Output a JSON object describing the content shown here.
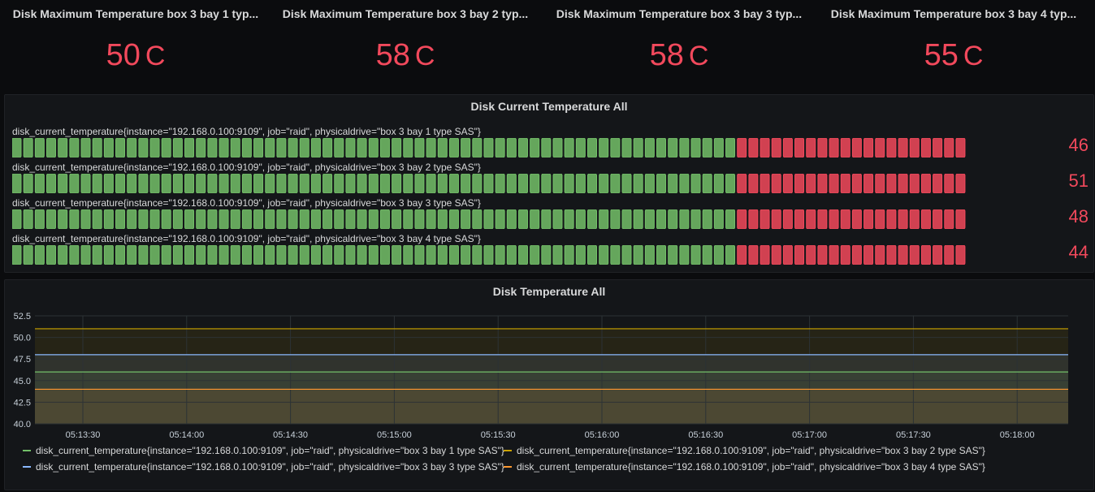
{
  "stats": [
    {
      "title": "Disk Maximum Temperature box 3 bay 1 typ...",
      "value": "50",
      "unit": "C"
    },
    {
      "title": "Disk Maximum Temperature box 3 bay 2 typ...",
      "value": "58",
      "unit": "C"
    },
    {
      "title": "Disk Maximum Temperature box 3 bay 3 typ...",
      "value": "58",
      "unit": "C"
    },
    {
      "title": "Disk Maximum Temperature box 3 bay 4 typ...",
      "value": "55",
      "unit": "C"
    }
  ],
  "gauge_panel": {
    "title": "Disk Current Temperature All",
    "rows": [
      {
        "label": "disk_current_temperature{instance=\"192.168.0.100:9109\", job=\"raid\", physicaldrive=\"box 3 bay 1 type SAS\"}",
        "value": "46"
      },
      {
        "label": "disk_current_temperature{instance=\"192.168.0.100:9109\", job=\"raid\", physicaldrive=\"box 3 bay 2 type SAS\"}",
        "value": "51"
      },
      {
        "label": "disk_current_temperature{instance=\"192.168.0.100:9109\", job=\"raid\", physicaldrive=\"box 3 bay 3 type SAS\"}",
        "value": "48"
      },
      {
        "label": "disk_current_temperature{instance=\"192.168.0.100:9109\", job=\"raid\", physicaldrive=\"box 3 bay 4 type SAS\"}",
        "value": "44"
      }
    ],
    "colors": {
      "green": "#73bf69",
      "red": "#f2495c"
    }
  },
  "graph_panel": {
    "title": "Disk Temperature All"
  },
  "chart_data": {
    "type": "line",
    "title": "Disk Temperature All",
    "xlabel": "",
    "ylabel": "",
    "ylim": [
      40.0,
      52.5
    ],
    "y_ticks": [
      "52.5",
      "50.0",
      "47.5",
      "45.0",
      "42.5",
      "40.0"
    ],
    "x_ticks": [
      "05:13:30",
      "05:14:00",
      "05:14:30",
      "05:15:00",
      "05:15:30",
      "05:16:00",
      "05:16:30",
      "05:17:00",
      "05:17:30",
      "05:18:00"
    ],
    "series": [
      {
        "name": "disk_current_temperature{instance=\"192.168.0.100:9109\", job=\"raid\", physicaldrive=\"box 3 bay 1 type SAS\"}",
        "color": "#73bf69",
        "value": 46
      },
      {
        "name": "disk_current_temperature{instance=\"192.168.0.100:9109\", job=\"raid\", physicaldrive=\"box 3 bay 2 type SAS\"}",
        "color": "#cca300",
        "value": 51
      },
      {
        "name": "disk_current_temperature{instance=\"192.168.0.100:9109\", job=\"raid\", physicaldrive=\"box 3 bay 3 type SAS\"}",
        "color": "#8ab8ff",
        "value": 48
      },
      {
        "name": "disk_current_temperature{instance=\"192.168.0.100:9109\", job=\"raid\", physicaldrive=\"box 3 bay 4 type SAS\"}",
        "color": "#ff9830",
        "value": 44
      }
    ]
  }
}
